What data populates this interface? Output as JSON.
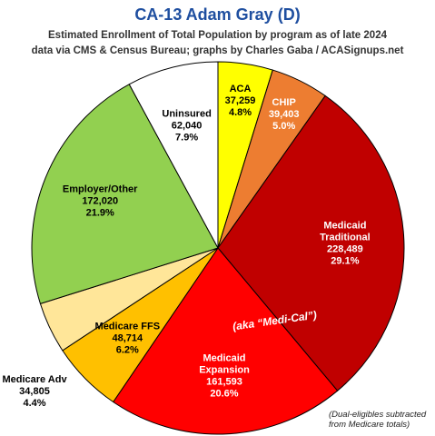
{
  "chart_data": {
    "type": "pie",
    "title": "CA-13 Adam Gray (D)",
    "subtitle_line_1": "Estimated Enrollment of Total Population by program as of late 2024",
    "subtitle_line_2": "data via CMS & Census Bureau; graphs by Charles Gaba / ACASignups.net",
    "slices": [
      {
        "label_lines": [
          "ACA"
        ],
        "value": 37259,
        "value_text": "37,259",
        "pct_text": "4.8%",
        "color": "#ffff00",
        "text_color": "#000000"
      },
      {
        "label_lines": [
          "CHIP"
        ],
        "value": 39403,
        "value_text": "39,403",
        "pct_text": "5.0%",
        "color": "#ed7d31",
        "text_color": "#ffffff"
      },
      {
        "label_lines": [
          "Medicaid",
          "Traditional"
        ],
        "value": 228489,
        "value_text": "228,489",
        "pct_text": "29.1%",
        "color": "#c00000",
        "text_color": "#ffffff"
      },
      {
        "label_lines": [
          "Medicaid",
          "Expansion"
        ],
        "value": 161593,
        "value_text": "161,593",
        "pct_text": "20.6%",
        "color": "#ff0000",
        "text_color": "#ffffff"
      },
      {
        "label_lines": [
          "Medicare FFS"
        ],
        "value": 48714,
        "value_text": "48,714",
        "pct_text": "6.2%",
        "color": "#ffc000",
        "text_color": "#000000"
      },
      {
        "label_lines": [
          "Medicare Adv"
        ],
        "value": 34805,
        "value_text": "34,805",
        "pct_text": "4.4%",
        "color": "#ffe699",
        "text_color": "#000000"
      },
      {
        "label_lines": [
          "Employer/Other"
        ],
        "value": 172020,
        "value_text": "172,020",
        "pct_text": "21.9%",
        "color": "#92d050",
        "text_color": "#000000"
      },
      {
        "label_lines": [
          "Uninsured"
        ],
        "value": 62040,
        "value_text": "62,040",
        "pct_text": "7.9%",
        "color": "#ffffff",
        "text_color": "#000000"
      }
    ],
    "annotation": "(aka “Medi-Cal”)",
    "footnote_lines": [
      "(Dual-eligibles subtracted",
      "from Medicare totals)"
    ],
    "legend": "none"
  }
}
